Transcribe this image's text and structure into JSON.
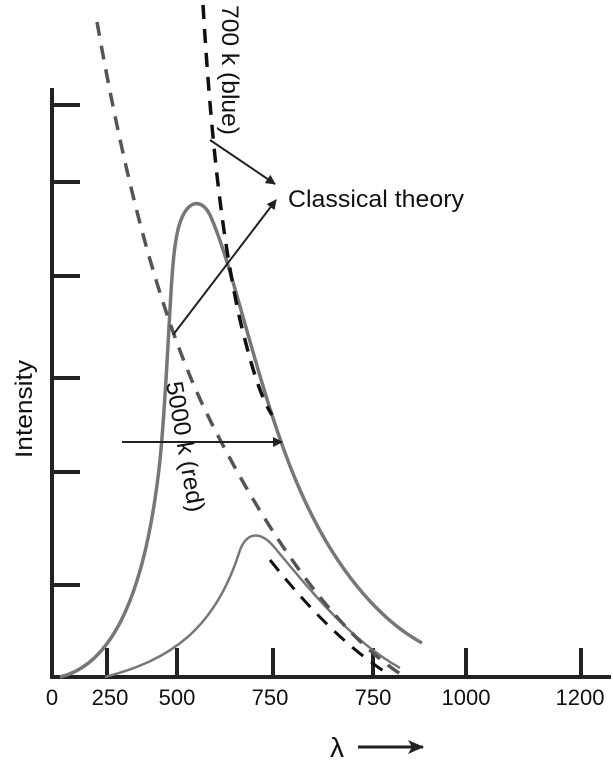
{
  "labels": {
    "y_axis": "Intensity",
    "x_axis": "λ",
    "classical": "Classical theory",
    "blue": "700 k (blue)",
    "red": "5000 k (red)"
  },
  "x_tick_labels": [
    "0",
    "250",
    "500",
    "750",
    "750",
    "1000",
    "1200"
  ]
}
